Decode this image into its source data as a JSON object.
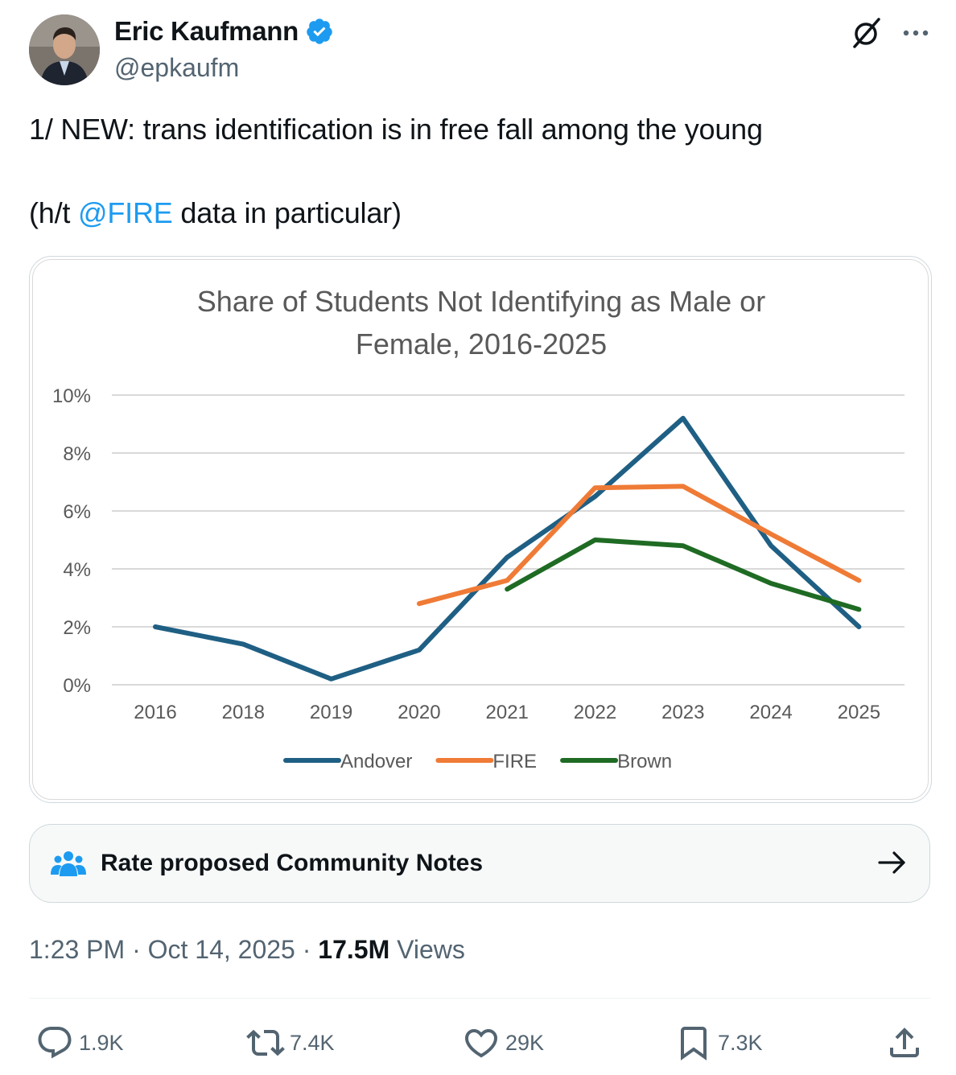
{
  "author": {
    "name": "Eric Kaufmann",
    "handle": "@epkaufm",
    "verified_color": "#1d9bf0"
  },
  "tweet": {
    "line1": "1/ NEW: trans identification is in free fall among the young",
    "line2_prefix": "(h/t ",
    "mention": "@FIRE",
    "line2_suffix": " data in particular)"
  },
  "chart_data": {
    "type": "line",
    "title_line1": "Share of Students Not Identifying as Male or",
    "title_line2": "Female, 2016-2025",
    "categories": [
      "2016",
      "2018",
      "2019",
      "2020",
      "2021",
      "2022",
      "2023",
      "2024",
      "2025"
    ],
    "y_ticks": [
      "10%",
      "8%",
      "6%",
      "4%",
      "2%",
      "0%"
    ],
    "ylim": [
      0,
      10
    ],
    "grid": true,
    "legend_position": "bottom",
    "series": [
      {
        "name": "Andover",
        "color": "#1f5f84",
        "values": [
          2.0,
          1.4,
          0.2,
          1.2,
          4.4,
          6.5,
          9.2,
          4.8,
          2.0
        ]
      },
      {
        "name": "FIRE",
        "color": "#ef7b36",
        "values": [
          null,
          null,
          null,
          2.8,
          3.6,
          6.8,
          6.85,
          5.2,
          3.6
        ]
      },
      {
        "name": "Brown",
        "color": "#1f6b24",
        "values": [
          null,
          null,
          null,
          null,
          3.3,
          5.0,
          4.8,
          3.5,
          2.6
        ]
      }
    ]
  },
  "community_notes": {
    "label": "Rate proposed Community Notes"
  },
  "meta": {
    "time": "1:23 PM",
    "sep1": " · ",
    "date": "Oct 14, 2025",
    "sep2": " · ",
    "views_count": "17.5M",
    "views_label": " Views"
  },
  "actions": {
    "replies": "1.9K",
    "reposts": "7.4K",
    "likes": "29K",
    "bookmarks": "7.3K"
  }
}
